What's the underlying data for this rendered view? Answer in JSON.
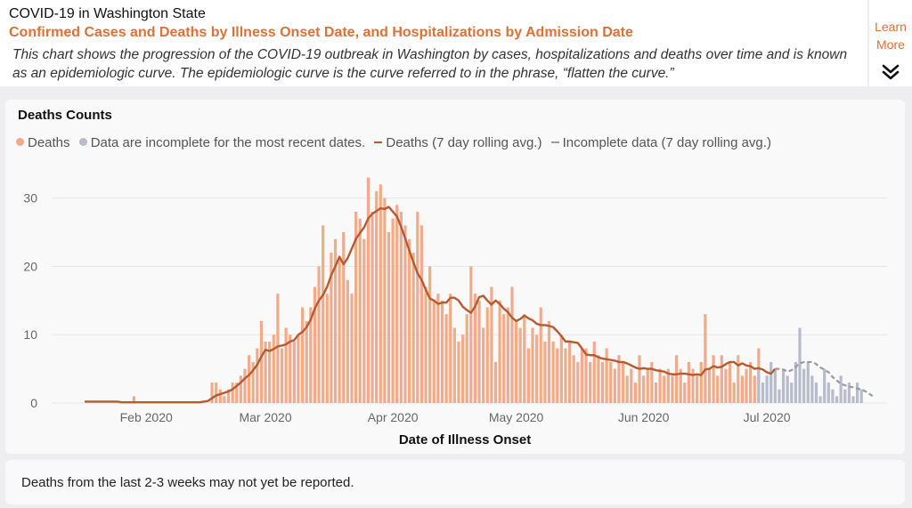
{
  "header": {
    "title": "COVID-19 in Washington State",
    "subtitle": "Confirmed Cases and Deaths by Illness Onset Date, and Hospitalizations by Admission Date",
    "description": "This chart shows the progression of the COVID-19 outbreak in Washington by cases, hospitalizations and deaths over time and is known as an epidemiologic curve. The epidemiologic curve is the curve referred to in the phrase, “flatten the curve.”"
  },
  "learn_more": {
    "label": "Learn More",
    "icon": "double-chevron-down-icon"
  },
  "colors": {
    "bar": "#f0ab8a",
    "incomplete_bar": "#b6bccb",
    "rolling_line": "#b85a30",
    "incomplete_line": "#9a9a9a",
    "accent": "#e07033"
  },
  "chart_data": {
    "type": "bar",
    "title": "Deaths Counts",
    "xlabel": "Date of Illness Onset",
    "ylabel": "",
    "ylim": [
      0,
      35
    ],
    "yticks": [
      0,
      10,
      20,
      30
    ],
    "x_start_date": "2020-01-17",
    "legend": [
      "Deaths",
      "Data are incomplete for the most recent dates.",
      "Deaths (7 day rolling avg.)",
      "Incomplete data (7 day rolling avg.)"
    ],
    "legend_position": "top-left",
    "xtick_labels": [
      {
        "label": "Feb 2020",
        "day": 15
      },
      {
        "label": "Mar 2020",
        "day": 44
      },
      {
        "label": "Apr 2020",
        "day": 75
      },
      {
        "label": "May 2020",
        "day": 105
      },
      {
        "label": "Jun 2020",
        "day": 136
      },
      {
        "label": "Jul 2020",
        "day": 166
      }
    ],
    "complete_start_day": 11,
    "deaths": [
      1,
      0,
      0,
      0,
      0,
      0,
      0,
      0,
      0,
      0,
      0,
      0,
      0,
      0,
      0,
      0,
      0,
      0,
      0,
      0,
      0,
      0,
      0,
      0,
      0,
      0,
      0,
      0,
      0,
      0,
      0,
      3,
      3,
      2,
      1,
      2,
      3,
      3,
      4,
      5,
      7,
      6,
      8,
      12,
      9,
      9,
      10,
      16,
      8,
      11,
      10,
      9,
      10,
      14,
      12,
      14,
      17,
      20,
      26,
      16,
      22,
      24,
      21,
      25,
      18,
      16,
      28,
      27,
      24,
      33,
      28,
      31,
      32,
      30,
      25,
      27,
      29,
      28,
      26,
      24,
      22,
      28,
      26,
      17,
      20,
      15,
      16,
      15,
      13,
      16,
      11,
      9,
      10,
      13,
      20,
      16,
      15,
      11,
      14,
      17,
      6,
      15,
      13,
      14,
      17,
      12,
      11,
      13,
      8,
      11,
      10,
      14,
      9,
      12,
      9,
      8,
      10,
      8,
      9,
      7,
      6,
      8,
      8,
      6,
      9,
      7,
      6,
      8,
      6,
      5,
      7,
      6,
      4,
      5,
      3,
      7,
      4,
      5,
      6,
      3,
      5,
      4,
      5,
      4,
      7,
      5,
      3,
      6,
      5,
      4,
      6,
      13,
      5,
      7,
      4,
      7,
      5,
      6,
      3,
      7,
      4,
      5,
      6,
      4,
      8
    ],
    "incomplete_start_day": 164,
    "incomplete_deaths": [
      5,
      3,
      4,
      6,
      5,
      2,
      5,
      4,
      3,
      6,
      11,
      5,
      6,
      4,
      3,
      1,
      5,
      3,
      2,
      1,
      4,
      2,
      3,
      1,
      3,
      2
    ],
    "rolling_avg": [
      0.2,
      0.2,
      0.2,
      0.2,
      0.2,
      0.2,
      0.2,
      0.2,
      0.2,
      0.1,
      0.1,
      0.1,
      0.1,
      0.1,
      0.1,
      0.1,
      0.1,
      0.1,
      0.1,
      0.1,
      0.1,
      0.1,
      0.1,
      0.1,
      0.1,
      0.1,
      0.1,
      0.1,
      0.1,
      0.2,
      0.3,
      0.7,
      1.1,
      1.3,
      1.5,
      1.7,
      2.0,
      2.5,
      3.0,
      3.6,
      4.1,
      4.8,
      5.6,
      6.8,
      7.8,
      7.6,
      7.9,
      8.3,
      8.4,
      8.6,
      9.0,
      9.2,
      10.0,
      10.4,
      11.1,
      12.2,
      13.8,
      15.0,
      15.8,
      17.0,
      18.7,
      20.0,
      21.4,
      20.3,
      21.2,
      22.6,
      24.0,
      24.9,
      25.7,
      27.0,
      27.7,
      28.1,
      28.5,
      28.4,
      28.7,
      28.0,
      27.3,
      25.8,
      24.1,
      22.3,
      20.6,
      19.0,
      18.0,
      16.6,
      15.3,
      15.0,
      14.5,
      14.7,
      14.7,
      15.4,
      15.4,
      15.0,
      14.1,
      13.6,
      13.2,
      14.1,
      15.5,
      15.7,
      15.0,
      14.4,
      15.0,
      14.5,
      13.8,
      13.3,
      12.5,
      12.0,
      12.3,
      12.8,
      12.4,
      12.1,
      11.6,
      11.4,
      11.4,
      11.3,
      11.1,
      10.5,
      9.8,
      9.0,
      9.0,
      8.9,
      8.8,
      8.0,
      7.1,
      7.0,
      7.0,
      6.7,
      6.5,
      6.4,
      6.3,
      6.2,
      6.0,
      6.0,
      5.8,
      5.5,
      5.2,
      5.0,
      5.1,
      5.0,
      5.0,
      4.8,
      4.7,
      4.6,
      4.3,
      4.2,
      4.2,
      4.3,
      4.3,
      4.2,
      4.1,
      4.2,
      4.1,
      4.9,
      5.0,
      5.4,
      5.2,
      5.3,
      5.7,
      6.0,
      6.0,
      5.5,
      5.8,
      5.5,
      5.4,
      5.0,
      5.1,
      4.9,
      4.5,
      4.3,
      5.0
    ],
    "incomplete_rolling_start_day": 169,
    "incomplete_rolling_avg": [
      5.0,
      4.9,
      4.6,
      4.8,
      5.3,
      5.8,
      6.0,
      6.0,
      6.0,
      5.7,
      5.2,
      4.9,
      4.5,
      3.8,
      3.3,
      2.8,
      2.6,
      2.4,
      2.3,
      2.1,
      2.0,
      1.7,
      1.3,
      0.9
    ]
  },
  "footer": {
    "note": "Deaths from the last 2-3 weeks may not yet be reported."
  }
}
